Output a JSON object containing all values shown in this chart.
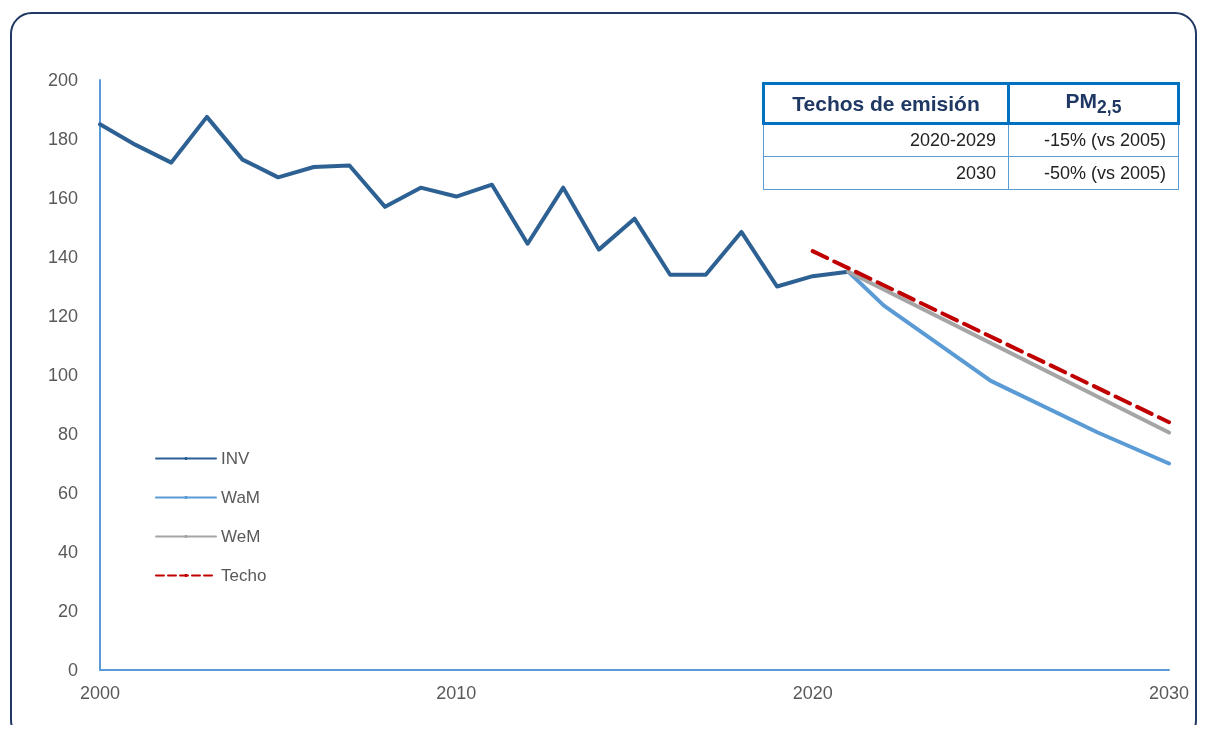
{
  "chart_data": {
    "type": "line",
    "xlim": [
      2000,
      2030
    ],
    "xticks": [
      2000,
      2010,
      2020,
      2030
    ],
    "ylim": [
      0,
      200
    ],
    "yticks": [
      0,
      20,
      40,
      60,
      80,
      100,
      120,
      140,
      160,
      180,
      200
    ],
    "grid": false,
    "legend": "left",
    "marker": "none",
    "annotations": [
      "Techos de emisión",
      "PM$_{2,5}$",
      "2020-2029",
      "-15% (vs 2005)",
      "2030",
      "-50% (vs 2005)"
    ],
    "series": [
      {
        "name": "INV",
        "color": "#2e6193",
        "x": [
          2000,
          2001,
          2002,
          2003,
          2004,
          2005,
          2006,
          2007,
          2008,
          2009,
          2010,
          2011,
          2012,
          2013,
          2014,
          2015,
          2016,
          2017,
          2018,
          2019,
          2020,
          2021
        ],
        "values": [
          185,
          178,
          172,
          187.5,
          173,
          167,
          170.5,
          171,
          157,
          163.5,
          160.5,
          164.5,
          144.5,
          163.5,
          142.5,
          153,
          134,
          134,
          148.5,
          130,
          133.5,
          135
        ]
      },
      {
        "name": "WaM",
        "color": "#5b9bd5",
        "x": [
          2021,
          2022,
          2025,
          2028,
          2030
        ],
        "values": [
          135,
          123.5,
          98,
          80.5,
          70
        ]
      },
      {
        "name": "WeM",
        "color": "#a5a5a5",
        "x": [
          2021,
          2030
        ],
        "values": [
          135,
          80.5
        ]
      },
      {
        "name": "Techo",
        "color": "#c00000",
        "line_style": "dashed",
        "x": [
          2020,
          2030
        ],
        "values": [
          142,
          84
        ]
      }
    ]
  }
}
